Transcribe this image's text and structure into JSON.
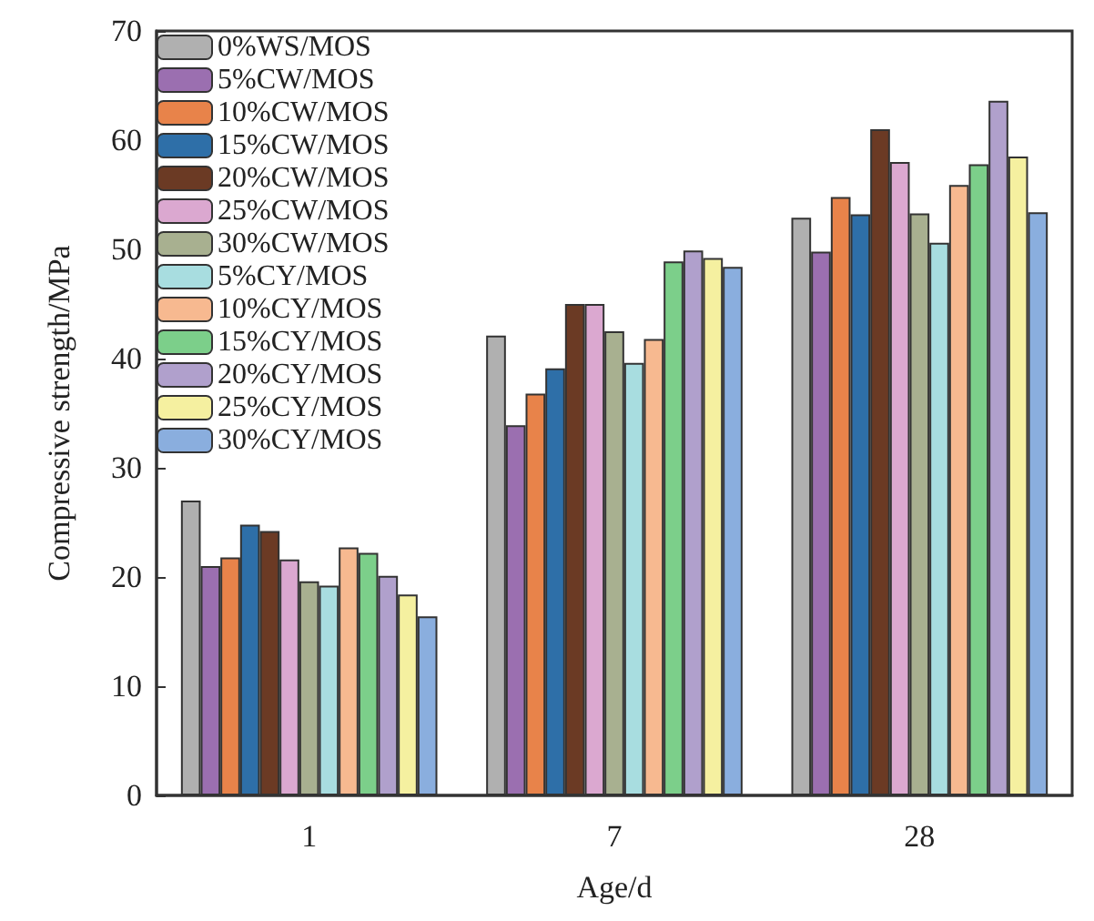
{
  "chart_data": {
    "type": "bar",
    "xlabel": "Age/d",
    "ylabel": "Compressive strength/MPa",
    "categories": [
      "1",
      "7",
      "28"
    ],
    "ylim": [
      0,
      70
    ],
    "yticks": [
      0,
      10,
      20,
      30,
      40,
      50,
      60,
      70
    ],
    "grid": false,
    "legend": "top left",
    "series": [
      {
        "name": "0%WS/MOS",
        "color": "#b0b0b0",
        "values": [
          27,
          42.1,
          52.9
        ]
      },
      {
        "name": "5%CW/MOS",
        "color": "#9b6fb0",
        "values": [
          21,
          33.9,
          49.8
        ]
      },
      {
        "name": "10%CW/MOS",
        "color": "#e8834a",
        "values": [
          21.8,
          36.8,
          54.8
        ]
      },
      {
        "name": "15%CW/MOS",
        "color": "#2e6fa8",
        "values": [
          24.8,
          39.1,
          53.2
        ]
      },
      {
        "name": "20%CW/MOS",
        "color": "#6b3a24",
        "values": [
          24.2,
          45,
          61
        ]
      },
      {
        "name": "25%CW/MOS",
        "color": "#dba8d0",
        "values": [
          21.6,
          45,
          58
        ]
      },
      {
        "name": "30%CW/MOS",
        "color": "#a8b090",
        "values": [
          19.6,
          42.5,
          53.3
        ]
      },
      {
        "name": "5%CY/MOS",
        "color": "#a8dde0",
        "values": [
          19.2,
          39.6,
          50.6
        ]
      },
      {
        "name": "10%CY/MOS",
        "color": "#f7b990",
        "values": [
          22.7,
          41.8,
          55.9
        ]
      },
      {
        "name": "15%CY/MOS",
        "color": "#7ccf8a",
        "values": [
          22.2,
          48.9,
          57.8
        ]
      },
      {
        "name": "20%CY/MOS",
        "color": "#b0a0cc",
        "values": [
          20.1,
          49.9,
          63.6
        ]
      },
      {
        "name": "25%CY/MOS",
        "color": "#f5f0a0",
        "values": [
          18.4,
          49.2,
          58.5
        ]
      },
      {
        "name": "30%CY/MOS",
        "color": "#8aaede",
        "values": [
          16.4,
          48.4,
          53.4
        ]
      }
    ]
  }
}
